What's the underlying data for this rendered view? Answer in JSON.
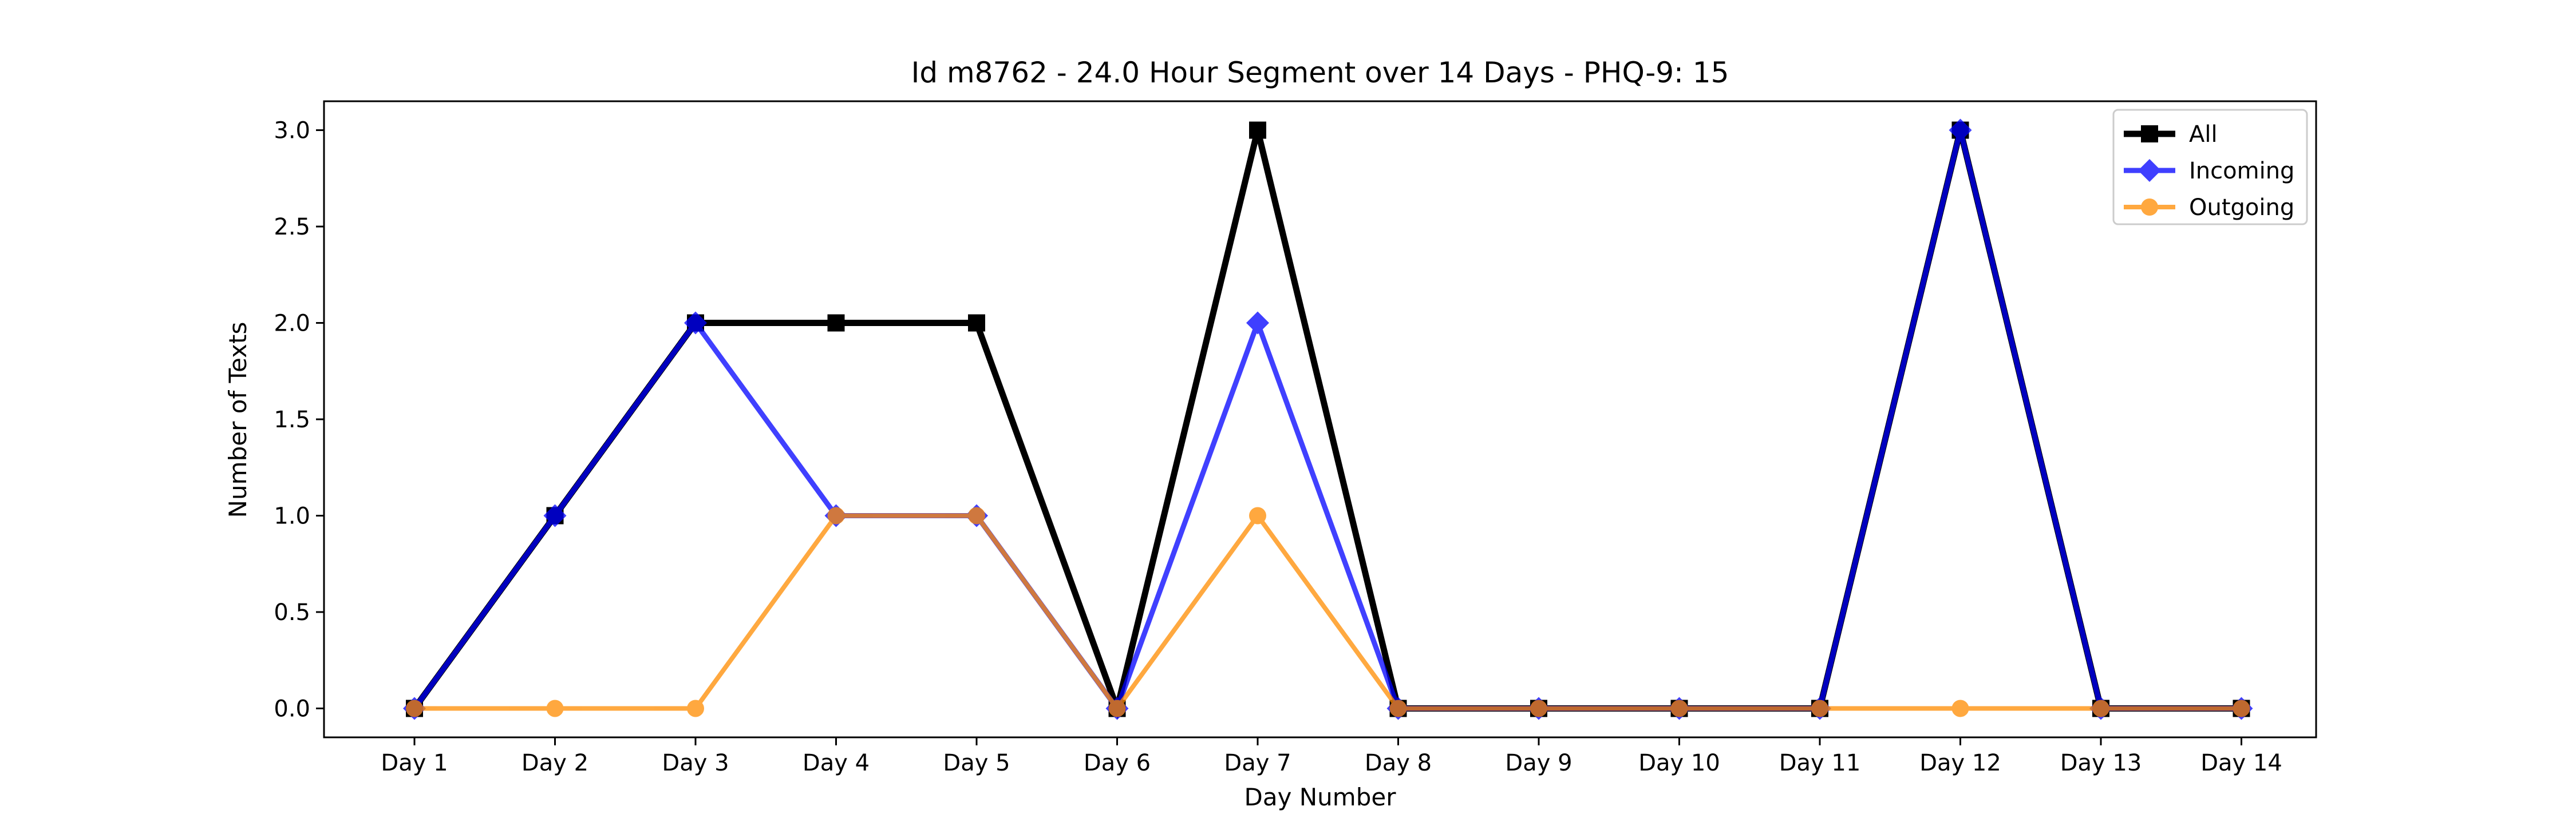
{
  "chart_data": {
    "type": "line",
    "title": "Id m8762 - 24.0 Hour Segment over 14 Days - PHQ-9: 15",
    "xlabel": "Day Number",
    "ylabel": "Number of Texts",
    "categories": [
      "Day 1",
      "Day 2",
      "Day 3",
      "Day 4",
      "Day 5",
      "Day 6",
      "Day 7",
      "Day 8",
      "Day 9",
      "Day 10",
      "Day 11",
      "Day 12",
      "Day 13",
      "Day 14"
    ],
    "yticks": [
      "0.0",
      "0.5",
      "1.0",
      "1.5",
      "2.0",
      "2.5",
      "3.0"
    ],
    "ylim": [
      -0.15,
      3.15
    ],
    "grid": false,
    "legend_position": "top-right",
    "series": [
      {
        "name": "All",
        "values": [
          0,
          1,
          2,
          2,
          2,
          0,
          3,
          0,
          0,
          0,
          0,
          3,
          0,
          0
        ],
        "color": "#000000",
        "marker": "square"
      },
      {
        "name": "Incoming",
        "values": [
          0,
          1,
          2,
          1,
          1,
          0,
          2,
          0,
          0,
          0,
          0,
          3,
          0,
          0
        ],
        "color": "#0000ff",
        "marker": "diamond"
      },
      {
        "name": "Outgoing",
        "values": [
          0,
          0,
          0,
          1,
          1,
          0,
          1,
          0,
          0,
          0,
          0,
          0,
          0,
          0
        ],
        "color": "#ff8c00",
        "marker": "circle"
      }
    ]
  }
}
